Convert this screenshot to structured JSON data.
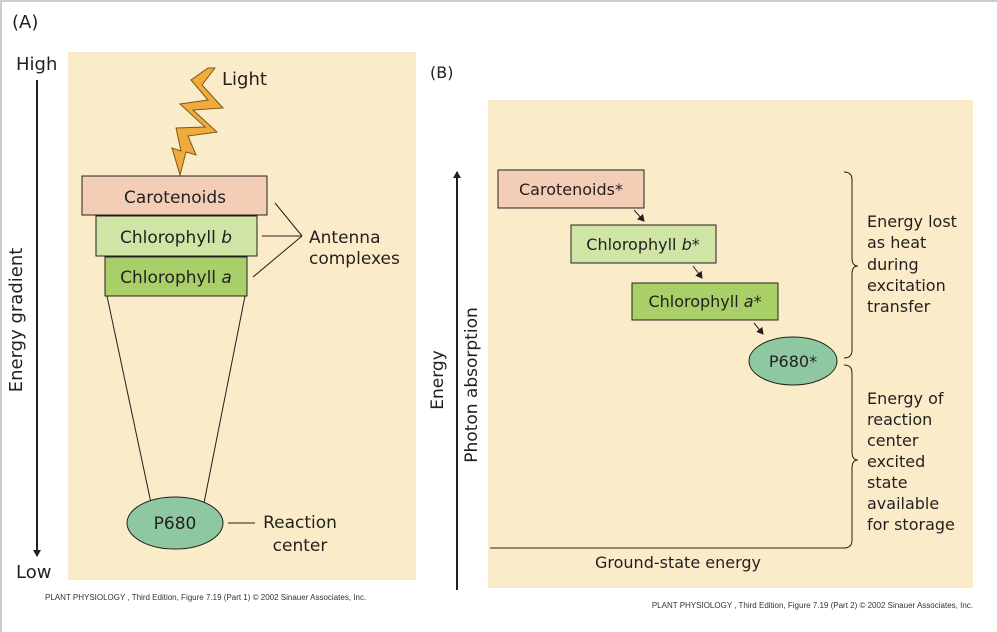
{
  "panel_a": {
    "label": "(A)",
    "axis_high": "High",
    "axis_low": "Low",
    "axis_label": "Energy gradient",
    "light_label": "Light",
    "boxes": [
      {
        "name": "Carotenoids",
        "italic": ""
      },
      {
        "name": "Chlorophyll ",
        "italic": "b"
      },
      {
        "name": "Chlorophyll ",
        "italic": "a"
      }
    ],
    "antenna_label": [
      "Antenna",
      "complexes"
    ],
    "reaction_center": "P680",
    "reaction_center_label": [
      "Reaction",
      "center"
    ],
    "caption": "PLANT PHYSIOLOGY , Third Edition, Figure 7.19 (Part 1)  © 2002 Sinauer Associates, Inc."
  },
  "panel_b": {
    "label": "(B)",
    "axis_label": "Energy",
    "arrow_label": "Photon absorption",
    "boxes": [
      {
        "name": "Carotenoids*",
        "italic": "",
        "suffix": ""
      },
      {
        "name": "Chlorophyll ",
        "italic": "b",
        "suffix": "*"
      },
      {
        "name": "Chlorophyll ",
        "italic": "a",
        "suffix": "*"
      }
    ],
    "reaction_center": "P680*",
    "brace_top": [
      "Energy lost",
      "as heat",
      "during",
      "excitation",
      "transfer"
    ],
    "brace_bottom": [
      "Energy of",
      "reaction",
      "center",
      "excited",
      "state",
      "available",
      "for storage"
    ],
    "ground_label": "Ground-state energy",
    "caption": "PLANT PHYSIOLOGY , Third Edition, Figure 7.19 (Part 2)  © 2002 Sinauer Associates, Inc."
  },
  "colors": {
    "panel_bg": "#fbecc9",
    "carotenoids": "#f3cdb5",
    "chlorophyll_b": "#d0e4a6",
    "chlorophyll_a": "#a9cf68",
    "p680": "#8ec8a0",
    "light": "#f0ab3a"
  }
}
